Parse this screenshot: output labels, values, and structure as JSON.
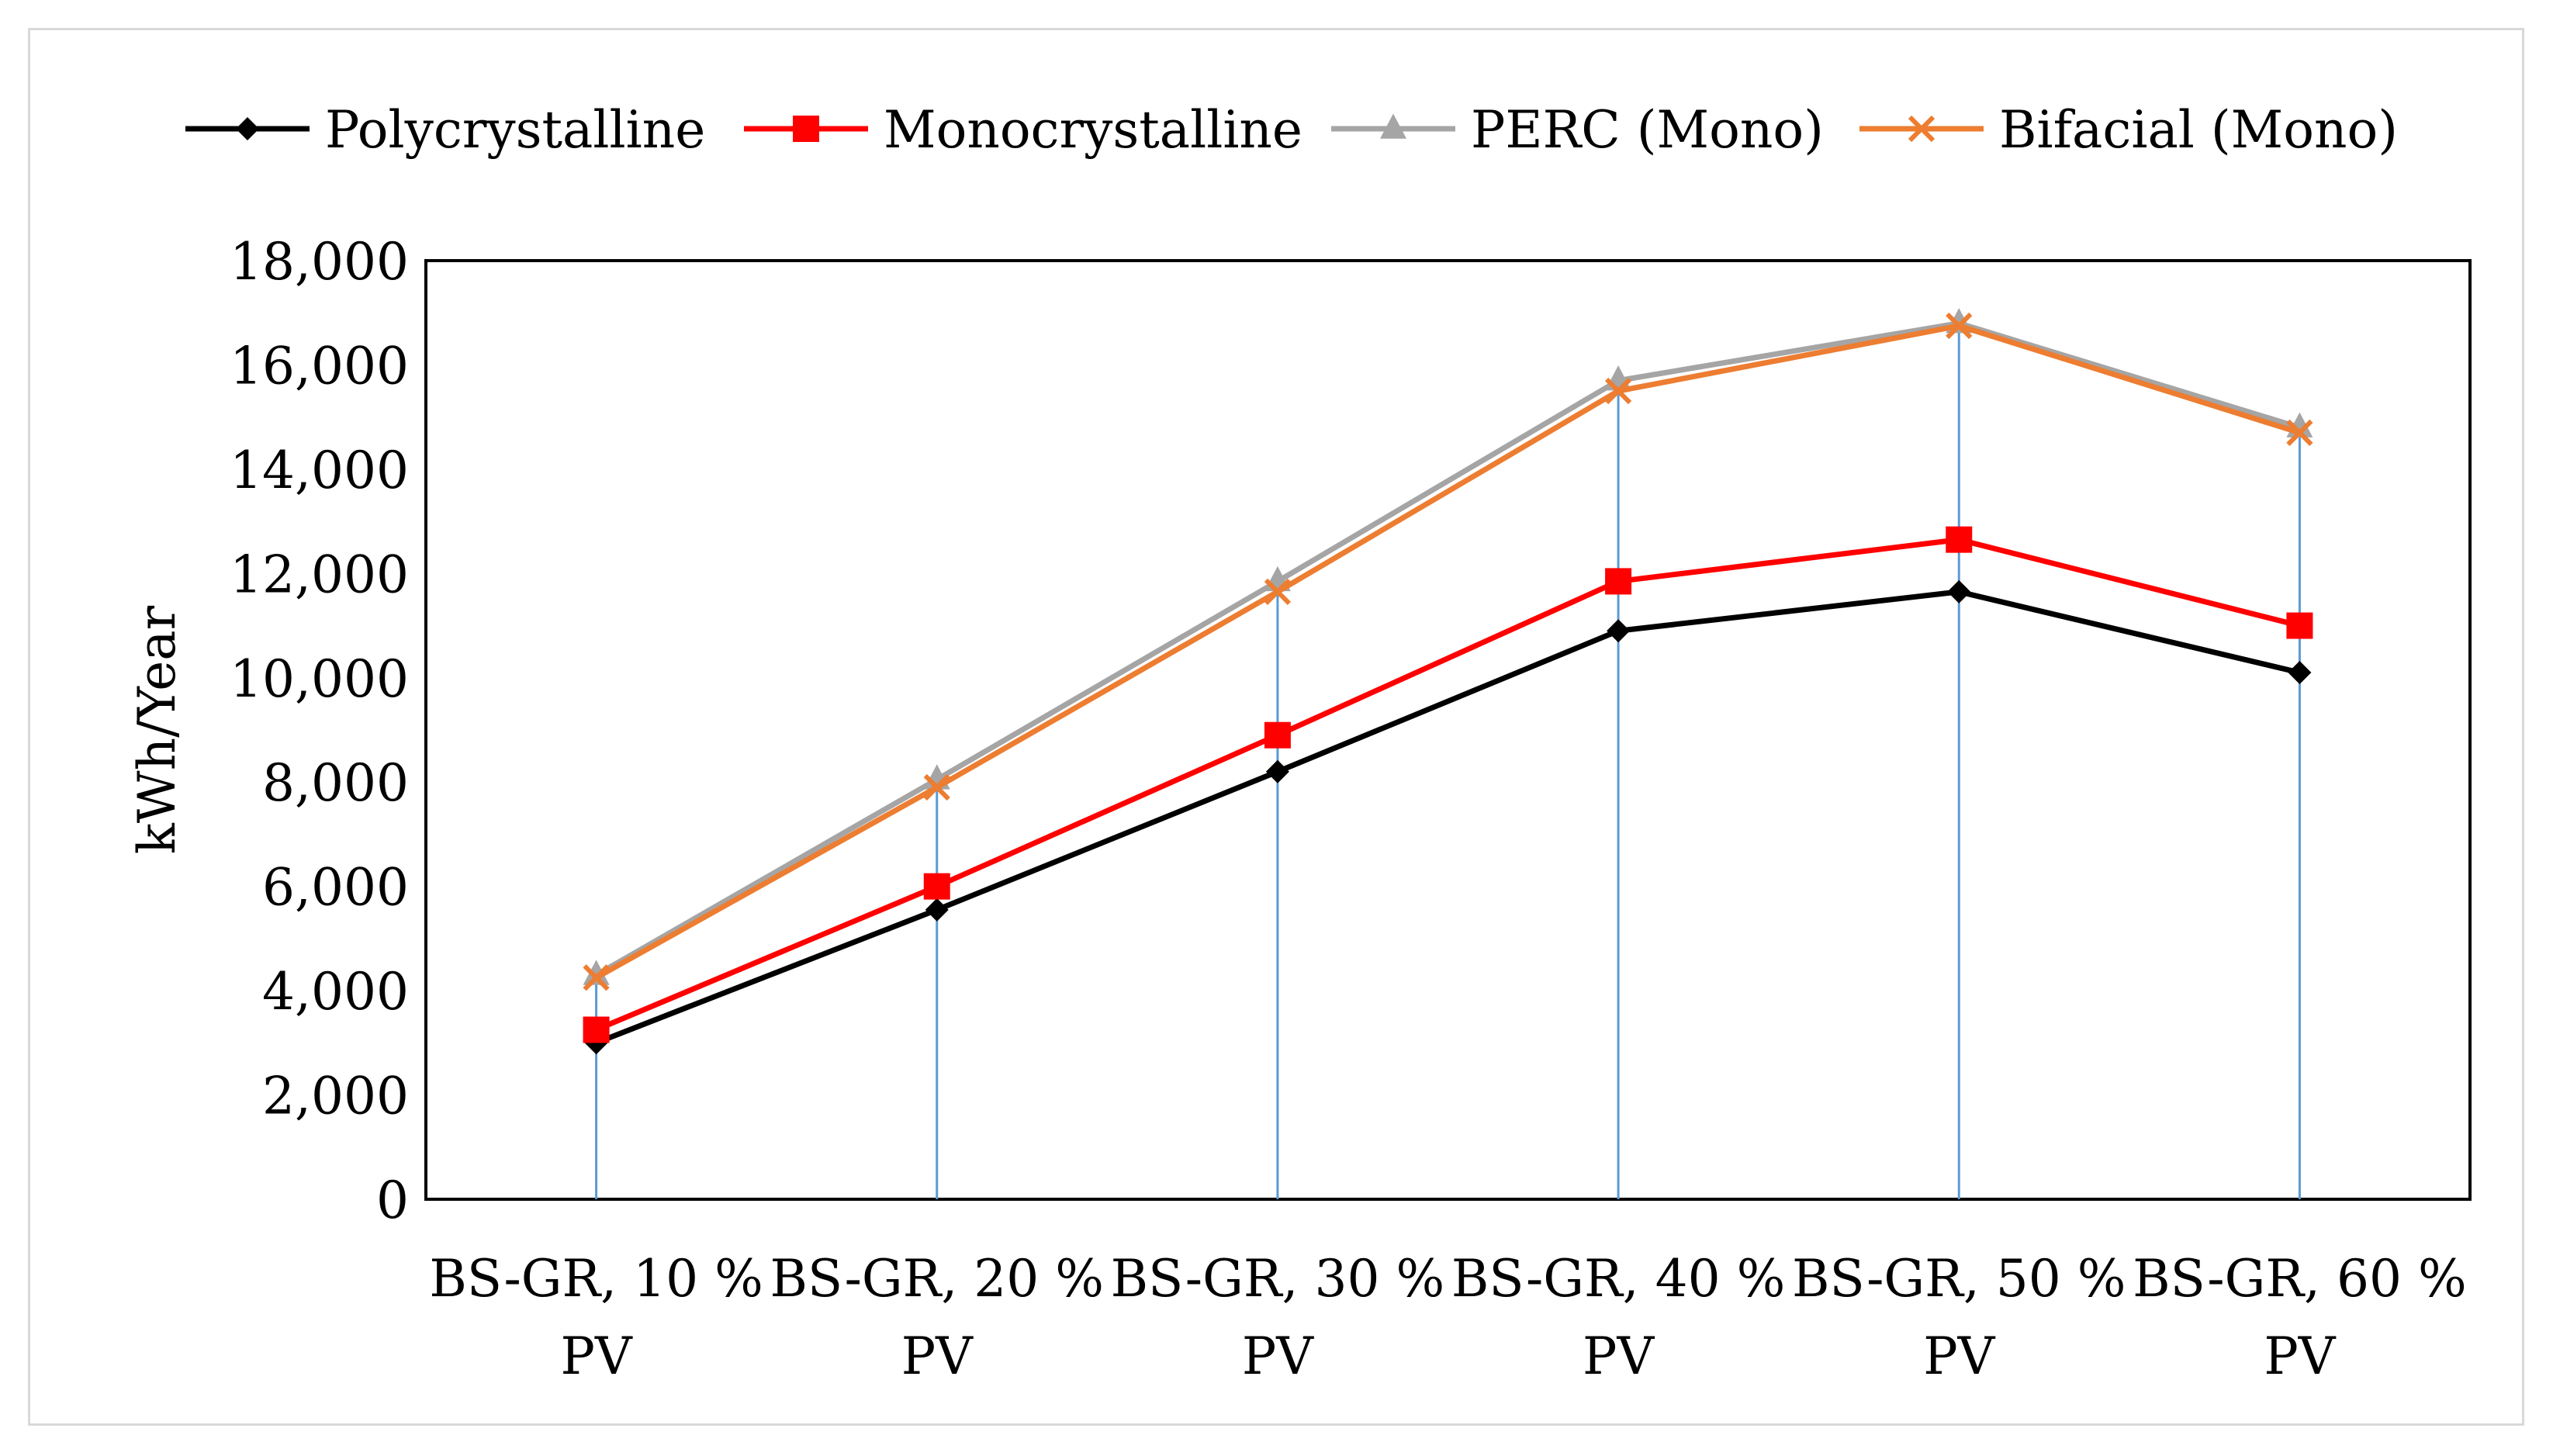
{
  "chart_data": {
    "type": "line",
    "title": "",
    "xlabel": "",
    "ylabel": "kWh/Year",
    "ylim": [
      0,
      18000
    ],
    "yticks": [
      0,
      2000,
      4000,
      6000,
      8000,
      10000,
      12000,
      14000,
      16000,
      18000
    ],
    "ytick_labels": [
      "0",
      "2,000",
      "4,000",
      "6,000",
      "8,000",
      "10,000",
      "12,000",
      "14,000",
      "16,000",
      "18,000"
    ],
    "categories": [
      [
        "BS-GR, 10 %",
        "PV"
      ],
      [
        "BS-GR, 20 %",
        "PV"
      ],
      [
        "BS-GR, 30 %",
        "PV"
      ],
      [
        "BS-GR, 40 %",
        "PV"
      ],
      [
        "BS-GR, 50 %",
        "PV"
      ],
      [
        "BS-GR, 60 %",
        "PV"
      ]
    ],
    "drop_lines": true,
    "grid": false,
    "legend_position": "top",
    "series": [
      {
        "name": "Polycrystalline",
        "color": "#000000",
        "marker": "diamond",
        "values": [
          3000,
          5550,
          8200,
          10900,
          11650,
          10100
        ]
      },
      {
        "name": "Monocrystalline",
        "color": "#ff0000",
        "marker": "square",
        "values": [
          3250,
          6000,
          8900,
          11850,
          12650,
          11000
        ]
      },
      {
        "name": "PERC (Mono)",
        "color": "#a5a5a5",
        "marker": "triangle",
        "values": [
          4300,
          8050,
          11850,
          15700,
          16800,
          14800
        ]
      },
      {
        "name": "Bifacial (Mono)",
        "color": "#ed7d31",
        "marker": "x",
        "values": [
          4250,
          7900,
          11650,
          15500,
          16750,
          14700
        ]
      }
    ],
    "colors": {
      "drop_line": "#5b9bd5",
      "axis": "#000000"
    }
  }
}
